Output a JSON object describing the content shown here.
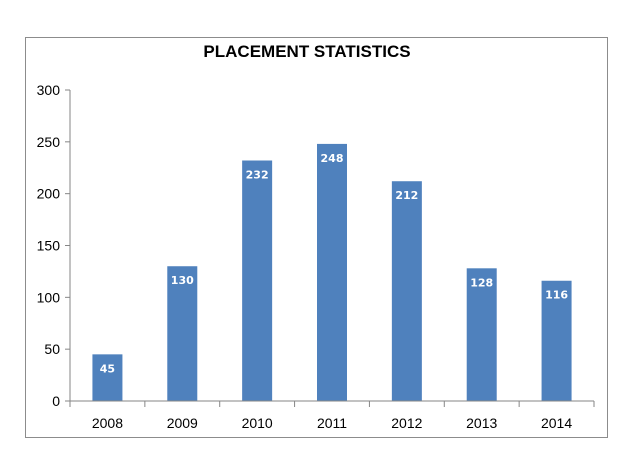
{
  "chart_data": {
    "type": "bar",
    "title": "PLACEMENT STATISTICS",
    "xlabel": "",
    "ylabel": "",
    "categories": [
      "2008",
      "2009",
      "2010",
      "2011",
      "2012",
      "2013",
      "2014"
    ],
    "values": [
      45,
      130,
      232,
      248,
      212,
      128,
      116
    ],
    "data_labels": [
      "45",
      "130",
      "232",
      "248",
      "212",
      "128",
      "116"
    ],
    "ylim": [
      0,
      300
    ],
    "yticks": [
      0,
      50,
      100,
      150,
      200,
      250,
      300
    ],
    "ytick_labels": [
      "0",
      "50",
      "100",
      "150",
      "200",
      "250",
      "300"
    ],
    "grid": false,
    "legend": "none",
    "bar_color": "#4f81bd",
    "axis_color": "#868686"
  }
}
